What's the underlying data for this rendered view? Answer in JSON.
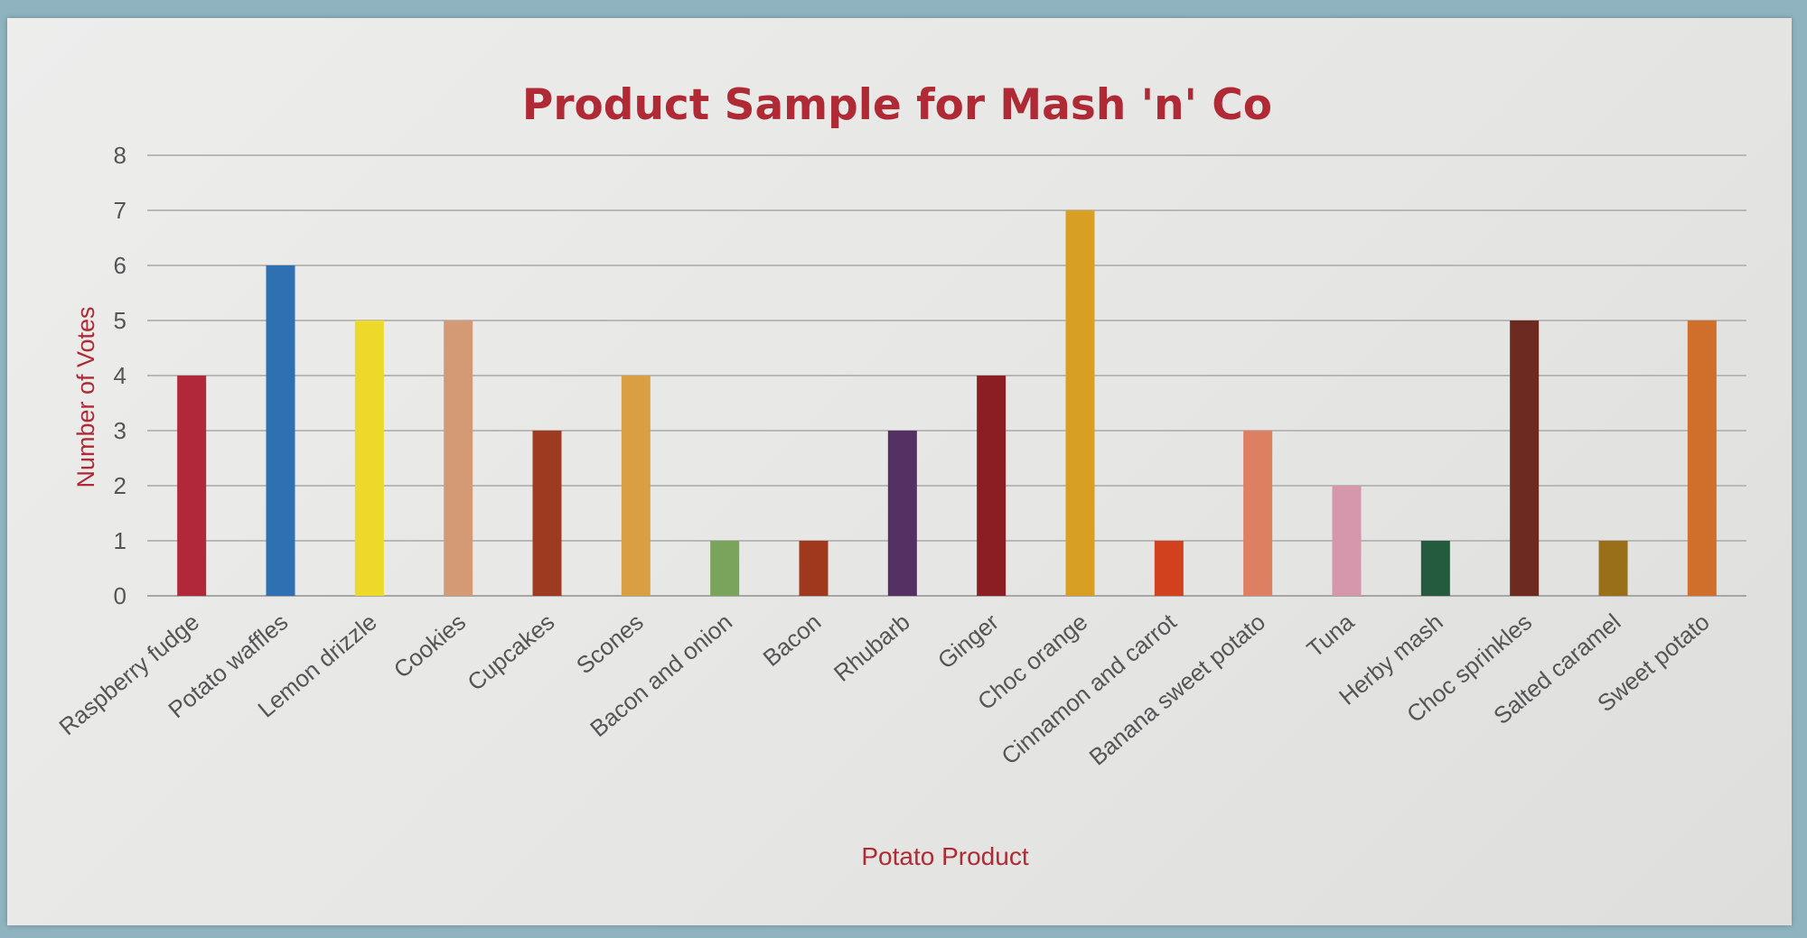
{
  "chart_data": {
    "type": "bar",
    "title": "Product Sample for Mash 'n' Co",
    "xlabel": "Potato Product",
    "ylabel": "Number of Votes",
    "ylim": [
      0,
      8
    ],
    "yticks": [
      0,
      1,
      2,
      3,
      4,
      5,
      6,
      7,
      8
    ],
    "grid": true,
    "categories": [
      "Raspberry fudge",
      "Potato waffles",
      "Lemon drizzle",
      "Cookies",
      "Cupcakes",
      "Scones",
      "Bacon and onion",
      "Bacon",
      "Rhubarb",
      "Ginger",
      "Choc orange",
      "Cinnamon and carrot",
      "Banana sweet potato",
      "Tuna",
      "Herby mash",
      "Choc sprinkles",
      "Salted caramel",
      "Sweet potato"
    ],
    "values": [
      4,
      6,
      5,
      5,
      3,
      4,
      1,
      1,
      3,
      4,
      7,
      1,
      3,
      2,
      1,
      5,
      1,
      5
    ],
    "colors": [
      "#b0283a",
      "#2f70b2",
      "#ecd92a",
      "#d49a76",
      "#9e3a1f",
      "#d9a043",
      "#7aa35c",
      "#a0381e",
      "#553062",
      "#8a1e22",
      "#d7a024",
      "#d2411d",
      "#dd8062",
      "#d696ac",
      "#245a3e",
      "#6c2a20",
      "#997019",
      "#cf6f2b"
    ],
    "title_color": "#b02a35",
    "label_color": "#b02a35"
  }
}
